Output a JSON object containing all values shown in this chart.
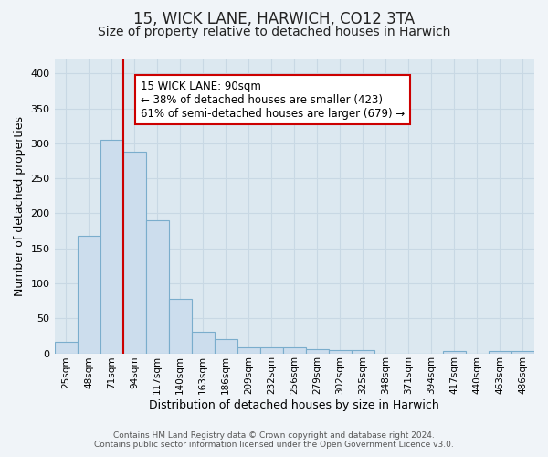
{
  "title": "15, WICK LANE, HARWICH, CO12 3TA",
  "subtitle": "Size of property relative to detached houses in Harwich",
  "xlabel": "Distribution of detached houses by size in Harwich",
  "ylabel": "Number of detached properties",
  "categories": [
    "25sqm",
    "48sqm",
    "71sqm",
    "94sqm",
    "117sqm",
    "140sqm",
    "163sqm",
    "186sqm",
    "209sqm",
    "232sqm",
    "256sqm",
    "279sqm",
    "302sqm",
    "325sqm",
    "348sqm",
    "371sqm",
    "394sqm",
    "417sqm",
    "440sqm",
    "463sqm",
    "486sqm"
  ],
  "values": [
    16,
    168,
    305,
    288,
    190,
    78,
    31,
    20,
    8,
    8,
    8,
    6,
    4,
    4,
    0,
    0,
    0,
    3,
    0,
    3,
    3
  ],
  "bar_color": "#ccdded",
  "bar_edge_color": "#7aadcc",
  "vline_x": 2.5,
  "vline_color": "#cc0000",
  "annotation_line1": "15 WICK LANE: 90sqm",
  "annotation_line2": "← 38% of detached houses are smaller (423)",
  "annotation_line3": "61% of semi-detached houses are larger (679) →",
  "annotation_box_color": "#ffffff",
  "annotation_box_edge_color": "#cc0000",
  "ylim": [
    0,
    420
  ],
  "yticks": [
    0,
    50,
    100,
    150,
    200,
    250,
    300,
    350,
    400
  ],
  "footnote1": "Contains HM Land Registry data © Crown copyright and database right 2024.",
  "footnote2": "Contains public sector information licensed under the Open Government Licence v3.0.",
  "outer_bg_color": "#f0f4f8",
  "plot_bg_color": "#dce8f0",
  "grid_color": "#c8d8e4",
  "title_fontsize": 12,
  "subtitle_fontsize": 10,
  "annotation_fontsize": 8.5
}
